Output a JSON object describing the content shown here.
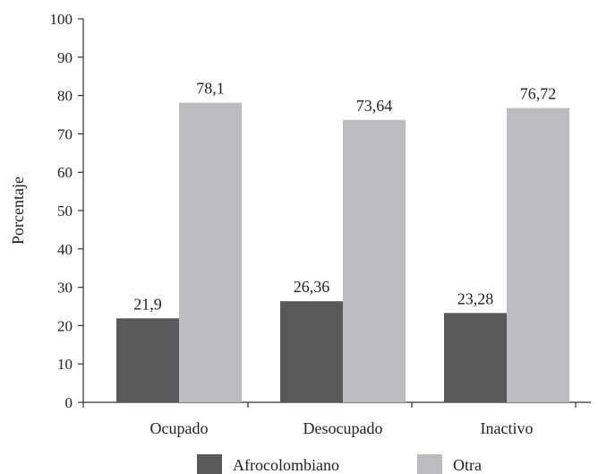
{
  "chart_data": {
    "type": "bar",
    "categories": [
      "Ocupado",
      "Desocupado",
      "Inactivo"
    ],
    "series": [
      {
        "name": "Afrocolombiano",
        "values": [
          21.9,
          26.36,
          23.28
        ],
        "labels": [
          "21,9",
          "26,36",
          "23,28"
        ],
        "color": "#58595b"
      },
      {
        "name": "Otra",
        "values": [
          78.1,
          73.64,
          76.72
        ],
        "labels": [
          "78,1",
          "73,64",
          "76,72"
        ],
        "color": "#bcbdc0"
      }
    ],
    "title": "",
    "xlabel": "",
    "ylabel": "Porcentaje",
    "ylim": [
      0,
      100
    ],
    "yticks": [
      0,
      10,
      20,
      30,
      40,
      50,
      60,
      70,
      80,
      90,
      100
    ],
    "grid": false,
    "legend_position": "bottom"
  }
}
